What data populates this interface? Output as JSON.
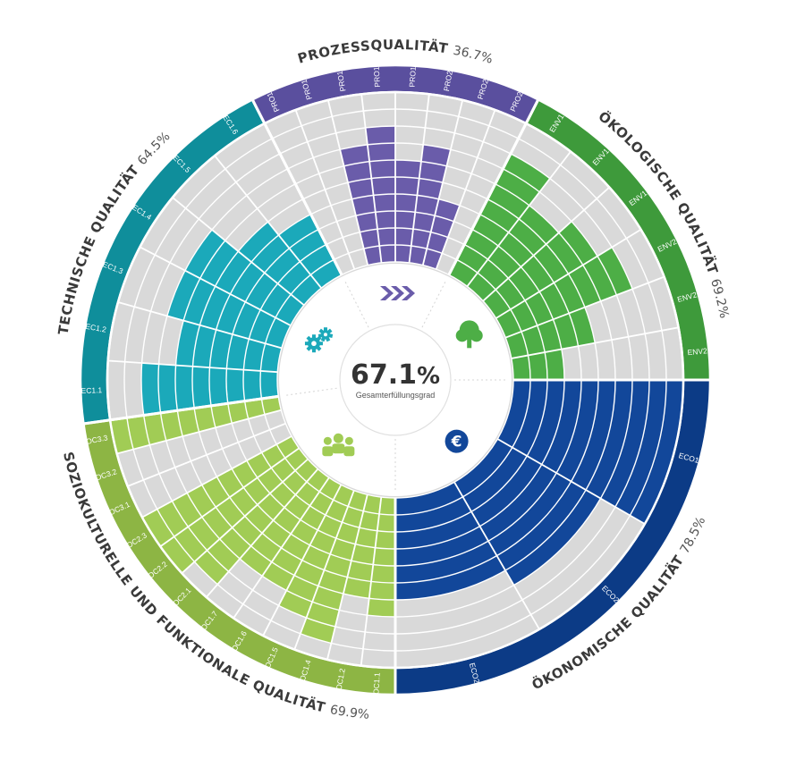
{
  "chart_data": {
    "type": "radial-bar",
    "total": {
      "value": "67.1",
      "unit": "%",
      "label": "Gesamterfüllungsgrad"
    },
    "max_level": 10,
    "categories": [
      {
        "key": "pro",
        "title": "PROZESSQUALITÄT",
        "percent": "36.7%",
        "color": "#6a5caa",
        "band_color": "#5a4f9e",
        "icon": "chevrons-icon",
        "criteria": [
          {
            "label": "PRO1.1",
            "level": 0
          },
          {
            "label": "PRO1.2",
            "level": 0
          },
          {
            "label": "PRO1.3",
            "level": 7
          },
          {
            "label": "PRO1.4",
            "level": 8
          },
          {
            "label": "PRO1.5",
            "level": 6
          },
          {
            "label": "PRO2.1",
            "level": 7
          },
          {
            "label": "PRO2.2",
            "level": 4
          },
          {
            "label": "PRO2.3",
            "level": 0
          }
        ]
      },
      {
        "key": "env",
        "title": "ÖKOLOGISCHE QUALITÄT",
        "percent": "69.2%",
        "color": "#4dae46",
        "band_color": "#3e9a3b",
        "icon": "tree-icon",
        "criteria": [
          {
            "label": "ENV1.1",
            "level": 8
          },
          {
            "label": "ENV1.2",
            "level": 6
          },
          {
            "label": "ENV1.3",
            "level": 7
          },
          {
            "label": "ENV2.1",
            "level": 8
          },
          {
            "label": "ENV2.2",
            "level": 5
          },
          {
            "label": "ENV2.3",
            "level": 3
          }
        ]
      },
      {
        "key": "eco",
        "title": "ÖKONOMISCHE QUALITÄT",
        "percent": "78.5%",
        "color": "#12479a",
        "band_color": "#0c3b86",
        "icon": "euro-icon",
        "criteria": [
          {
            "label": "ECO1.1",
            "level": 10
          },
          {
            "label": "ECO2.1",
            "level": 7
          },
          {
            "label": "ECO2.2",
            "level": 6
          }
        ]
      },
      {
        "key": "soc",
        "title": "SOZIOKULTURELLE UND FUNKTIONALE QUALITÄT",
        "percent": "69.9%",
        "color": "#a1cc55",
        "band_color": "#8db544",
        "icon": "people-icon",
        "criteria": [
          {
            "label": "SOC1.1",
            "level": 7
          },
          {
            "label": "SOC1.2",
            "level": 6
          },
          {
            "label": "SOC1.4",
            "level": 9
          },
          {
            "label": "SOC1.5",
            "level": 8
          },
          {
            "label": "SOC1.6",
            "level": 7
          },
          {
            "label": "SOC1.7",
            "level": 7
          },
          {
            "label": "SOC2.1",
            "level": 9
          },
          {
            "label": "SOC2.2",
            "level": 10
          },
          {
            "label": "SOC2.3",
            "level": 10
          },
          {
            "label": "SOC3.1",
            "level": 0
          },
          {
            "label": "SOC3.2",
            "level": 0
          },
          {
            "label": "SOC3.3",
            "level": 10
          }
        ]
      },
      {
        "key": "tec",
        "title": "TECHNISCHE QUALITÄT",
        "percent": "64.5%",
        "color": "#1ba9ba",
        "band_color": "#0f8e9b",
        "icon": "gears-icon",
        "criteria": [
          {
            "label": "TEC1.1",
            "level": 8
          },
          {
            "label": "TEC1.2",
            "level": 6
          },
          {
            "label": "TEC1.3",
            "level": 7
          },
          {
            "label": "TEC1.4",
            "level": 7
          },
          {
            "label": "TEC1.5",
            "level": 5
          },
          {
            "label": "TEC1.6",
            "level": 4
          }
        ]
      }
    ]
  }
}
